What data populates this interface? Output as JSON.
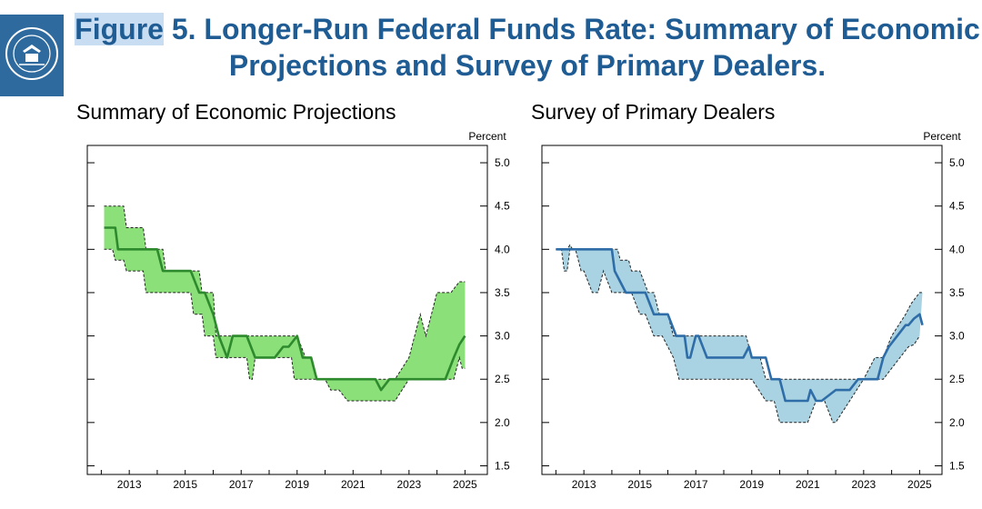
{
  "title": {
    "highlight": "Figure",
    "line1": "5. Longer-Run Federal Funds Rate: Summary of Economic",
    "line2": "Projections and Survey of Primary Dealers."
  },
  "seal": {
    "label": "Federal Reserve seal",
    "color": "#2e6a9e"
  },
  "chart_data": [
    {
      "type": "area",
      "title": "Summary of Economic Projections",
      "ylabel": "Percent",
      "xlim": [
        2011.5,
        2025.8
      ],
      "ylim": [
        1.4,
        5.2
      ],
      "x_ticks": [
        2013,
        2015,
        2017,
        2019,
        2021,
        2023,
        2025
      ],
      "y_ticks": [
        1.5,
        2.0,
        2.5,
        3.0,
        3.5,
        4.0,
        4.5,
        5.0
      ],
      "fill_color": "#8ce07a",
      "line_color": "#2d8a2d",
      "series": [
        {
          "name": "median",
          "x": [
            2012.1,
            2012.5,
            2012.6,
            2013.0,
            2013.1,
            2013.5,
            2013.7,
            2014.0,
            2014.2,
            2014.5,
            2014.7,
            2015.0,
            2015.2,
            2015.5,
            2015.7,
            2016.0,
            2016.2,
            2016.5,
            2016.7,
            2017.0,
            2017.2,
            2017.5,
            2017.7,
            2018.0,
            2018.2,
            2018.5,
            2018.7,
            2019.0,
            2019.2,
            2019.5,
            2019.7,
            2020.0,
            2020.5,
            2021.0,
            2021.5,
            2021.8,
            2022.0,
            2022.3,
            2022.6,
            2023.0,
            2023.3,
            2023.6,
            2024.0,
            2024.3,
            2024.6,
            2024.8,
            2025.0
          ],
          "values": [
            4.25,
            4.25,
            4.0,
            4.0,
            4.0,
            4.0,
            4.0,
            4.0,
            3.75,
            3.75,
            3.75,
            3.75,
            3.75,
            3.5,
            3.5,
            3.25,
            3.0,
            2.75,
            3.0,
            3.0,
            3.0,
            2.75,
            2.75,
            2.75,
            2.75,
            2.875,
            2.875,
            3.0,
            2.75,
            2.75,
            2.5,
            2.5,
            2.5,
            2.5,
            2.5,
            2.5,
            2.375,
            2.5,
            2.5,
            2.5,
            2.5,
            2.5,
            2.5,
            2.5,
            2.75,
            2.9,
            3.0
          ]
        },
        {
          "name": "upper",
          "x": [
            2012.1,
            2012.8,
            2012.9,
            2013.5,
            2013.6,
            2014.2,
            2014.3,
            2014.9,
            2015.0,
            2015.5,
            2015.6,
            2016.0,
            2016.1,
            2016.4,
            2016.5,
            2017.0,
            2017.5,
            2018.0,
            2018.5,
            2019.0,
            2019.3,
            2019.5,
            2019.7,
            2020.0,
            2021.0,
            2022.0,
            2022.5,
            2023.0,
            2023.2,
            2023.4,
            2023.6,
            2023.8,
            2024.0,
            2024.2,
            2024.5,
            2024.8,
            2025.0
          ],
          "values": [
            4.5,
            4.5,
            4.25,
            4.25,
            4.0,
            4.0,
            3.75,
            3.75,
            3.75,
            3.75,
            3.5,
            3.5,
            3.0,
            3.0,
            3.0,
            3.0,
            3.0,
            3.0,
            3.0,
            3.0,
            2.75,
            2.75,
            2.5,
            2.5,
            2.5,
            2.5,
            2.5,
            2.75,
            3.0,
            3.25,
            3.0,
            3.25,
            3.5,
            3.5,
            3.5,
            3.625,
            3.625
          ]
        },
        {
          "name": "lower",
          "x": [
            2012.1,
            2012.4,
            2012.5,
            2012.8,
            2012.9,
            2013.5,
            2013.6,
            2014.0,
            2014.1,
            2014.7,
            2014.8,
            2015.2,
            2015.3,
            2015.6,
            2015.7,
            2016.0,
            2016.1,
            2016.4,
            2016.5,
            2016.9,
            2017.0,
            2017.2,
            2017.3,
            2017.4,
            2017.5,
            2017.7,
            2017.8,
            2018.4,
            2018.5,
            2018.8,
            2018.9,
            2019.2,
            2019.3,
            2019.7,
            2019.8,
            2020.0,
            2020.2,
            2020.5,
            2020.8,
            2021.0,
            2022.0,
            2022.5,
            2023.0,
            2023.3,
            2023.6,
            2024.0,
            2024.3,
            2024.6,
            2024.8,
            2024.9,
            2025.0
          ],
          "values": [
            4.0,
            4.0,
            3.875,
            3.875,
            3.75,
            3.75,
            3.5,
            3.5,
            3.5,
            3.5,
            3.5,
            3.5,
            3.25,
            3.25,
            3.0,
            3.0,
            2.75,
            2.75,
            2.75,
            2.75,
            2.75,
            2.75,
            2.5,
            2.5,
            2.75,
            2.75,
            2.75,
            2.75,
            2.75,
            2.75,
            2.5,
            2.5,
            2.5,
            2.5,
            2.5,
            2.5,
            2.375,
            2.375,
            2.25,
            2.25,
            2.25,
            2.25,
            2.5,
            2.5,
            2.5,
            2.5,
            2.5,
            2.5,
            2.75,
            2.625,
            2.625
          ]
        }
      ]
    },
    {
      "type": "area",
      "title": "Survey of Primary Dealers",
      "ylabel": "Percent",
      "xlim": [
        2011.5,
        2025.8
      ],
      "ylim": [
        1.4,
        5.2
      ],
      "x_ticks": [
        2013,
        2015,
        2017,
        2019,
        2021,
        2023,
        2025
      ],
      "y_ticks": [
        1.5,
        2.0,
        2.5,
        3.0,
        3.5,
        4.0,
        4.5,
        5.0
      ],
      "fill_color": "#a9d3e2",
      "line_color": "#2f6da8",
      "series": [
        {
          "name": "median",
          "x": [
            2012.0,
            2012.5,
            2013.0,
            2013.5,
            2014.0,
            2014.1,
            2014.5,
            2014.9,
            2015.0,
            2015.2,
            2015.5,
            2015.8,
            2016.0,
            2016.3,
            2016.5,
            2016.6,
            2016.7,
            2016.8,
            2017.0,
            2017.1,
            2017.4,
            2017.5,
            2018.0,
            2018.5,
            2018.7,
            2018.9,
            2019.0,
            2019.5,
            2019.7,
            2020.0,
            2020.2,
            2021.0,
            2021.1,
            2021.3,
            2021.5,
            2022.0,
            2022.5,
            2022.8,
            2023.0,
            2023.5,
            2023.7,
            2023.9,
            2024.2,
            2024.5,
            2024.6,
            2024.8,
            2025.0,
            2025.1
          ],
          "values": [
            4.0,
            4.0,
            4.0,
            4.0,
            4.0,
            3.75,
            3.5,
            3.5,
            3.5,
            3.5,
            3.25,
            3.25,
            3.25,
            3.0,
            3.0,
            3.0,
            2.75,
            2.75,
            3.0,
            3.0,
            2.75,
            2.75,
            2.75,
            2.75,
            2.75,
            2.875,
            2.75,
            2.75,
            2.5,
            2.5,
            2.25,
            2.25,
            2.375,
            2.25,
            2.25,
            2.375,
            2.375,
            2.5,
            2.5,
            2.5,
            2.75,
            2.875,
            3.0,
            3.125,
            3.125,
            3.2,
            3.25,
            3.125
          ]
        },
        {
          "name": "upper",
          "x": [
            2012.0,
            2012.4,
            2012.5,
            2012.6,
            2012.7,
            2014.2,
            2014.3,
            2014.6,
            2014.7,
            2014.9,
            2015.0,
            2015.3,
            2015.5,
            2015.7,
            2016.0,
            2016.2,
            2016.3,
            2017.0,
            2018.0,
            2018.5,
            2018.8,
            2019.0,
            2019.3,
            2019.5,
            2020.0,
            2021.0,
            2021.5,
            2021.7,
            2022.0,
            2022.5,
            2023.0,
            2023.4,
            2023.7,
            2024.0,
            2024.5,
            2024.7,
            2025.0,
            2025.1
          ],
          "values": [
            4.0,
            4.0,
            4.05,
            4.0,
            4.0,
            4.0,
            3.875,
            3.875,
            3.75,
            3.75,
            3.75,
            3.5,
            3.5,
            3.25,
            3.25,
            3.0,
            3.0,
            3.0,
            3.0,
            3.0,
            3.0,
            2.75,
            2.75,
            2.5,
            2.5,
            2.5,
            2.5,
            2.5,
            2.5,
            2.5,
            2.5,
            2.75,
            2.75,
            3.0,
            3.25,
            3.375,
            3.5,
            3.5
          ]
        },
        {
          "name": "lower",
          "x": [
            2012.0,
            2012.2,
            2012.3,
            2012.4,
            2012.5,
            2012.7,
            2012.9,
            2013.0,
            2013.3,
            2013.5,
            2013.7,
            2014.0,
            2014.3,
            2014.7,
            2015.0,
            2015.2,
            2015.5,
            2015.8,
            2016.0,
            2016.2,
            2016.4,
            2016.6,
            2017.0,
            2017.5,
            2018.0,
            2018.5,
            2019.0,
            2019.5,
            2019.8,
            2020.0,
            2020.3,
            2020.6,
            2021.0,
            2021.3,
            2021.6,
            2021.9,
            2022.0,
            2022.5,
            2023.0,
            2023.5,
            2023.7,
            2024.0,
            2024.3,
            2024.6,
            2024.8,
            2025.0
          ],
          "values": [
            4.0,
            4.0,
            3.75,
            3.75,
            4.0,
            4.0,
            3.75,
            3.75,
            3.5,
            3.5,
            3.75,
            3.5,
            3.5,
            3.5,
            3.25,
            3.25,
            3.0,
            3.0,
            2.875,
            2.75,
            2.5,
            2.5,
            2.5,
            2.5,
            2.5,
            2.5,
            2.5,
            2.25,
            2.25,
            2.0,
            2.0,
            2.0,
            2.0,
            2.25,
            2.25,
            2.0,
            2.0,
            2.25,
            2.5,
            2.5,
            2.5,
            2.625,
            2.75,
            2.875,
            2.9,
            3.0
          ]
        }
      ]
    }
  ]
}
